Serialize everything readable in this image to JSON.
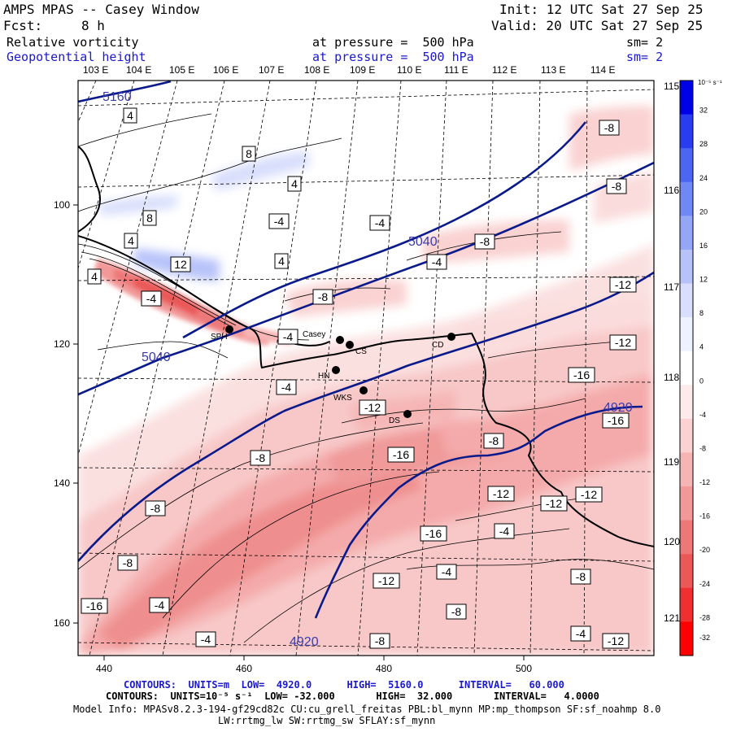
{
  "header": {
    "title": "AMPS MPAS -- Casey Window",
    "init": "Init: 12 UTC Sat 27 Sep 25",
    "fcst_label": "Fcst:",
    "fcst_value": "8 h",
    "valid": "Valid: 20 UTC Sat 27 Sep 25",
    "field1": "Relative vorticity",
    "field1_level": "at pressure =  500 hPa",
    "field1_sm": "sm= 2",
    "field2": "Geopotential height",
    "field2_level": "at pressure =  500 hPa",
    "field2_sm": "sm= 2"
  },
  "map": {
    "top_longitudes": [
      "103 E",
      "104 E",
      "105 E",
      "106 E",
      "107 E",
      "108 E",
      "109 E",
      "110 E",
      "111 E",
      "112 E",
      "113 E",
      "114 E"
    ],
    "right_longitudes": [
      "115 E",
      "116 E",
      "117 E",
      "118 E",
      "119 E",
      "120 E",
      "121 E"
    ],
    "x_ticks": [
      "440",
      "460",
      "480",
      "500"
    ],
    "y_ticks": [
      "100",
      "120",
      "140",
      "160"
    ],
    "stations": [
      "SPH",
      "Casey",
      "CS",
      "CD",
      "HN",
      "WKS",
      "DS"
    ],
    "height_labels": [
      "5160",
      "5040",
      "5040",
      "4920",
      "4920"
    ],
    "vorticity_labels": [
      "4",
      "4",
      "8",
      "4",
      "8",
      "4",
      "12",
      "4",
      "-4",
      "-4",
      "-4",
      "-4",
      "-8",
      "-8",
      "-8",
      "-8",
      "-4",
      "-4",
      "-12",
      "-12",
      "-12",
      "-16",
      "-16",
      "-16",
      "-8",
      "-8",
      "-8",
      "-12",
      "-12",
      "-12",
      "-16",
      "-4",
      "-8",
      "-16",
      "-12",
      "-4",
      "-8",
      "-4",
      "-8",
      "-4",
      "-8",
      "-4",
      "-12"
    ]
  },
  "colorbar": {
    "units": "10⁻⁵ s⁻¹",
    "levels": [
      "32",
      "28",
      "24",
      "20",
      "16",
      "12",
      "8",
      "4",
      "0",
      "-4",
      "-8",
      "-12",
      "-16",
      "-20",
      "-24",
      "-28",
      "-32"
    ],
    "colors": [
      "#0000e6",
      "#2a3cf0",
      "#4d66f2",
      "#7088f4",
      "#96a6f7",
      "#b7c2f9",
      "#d8defc",
      "#eef1fe",
      "#ffffff",
      "#fdeaea",
      "#fad2d2",
      "#f6b5b5",
      "#f29898",
      "#ee7878",
      "#ea5858",
      "#f03030",
      "#ff0000"
    ]
  },
  "footer": {
    "contours1": "CONTOURS:  UNITS=m  LOW=  4920.0      HIGH=  5160.0      INTERVAL=   60.000",
    "contours2": "CONTOURS:  UNITS=10⁻⁵ s⁻¹  LOW= -32.000       HIGH=  32.000       INTERVAL=   4.0000",
    "model_info": "Model Info: MPASv8.2.3-194-gf29cd82c CU:cu_grell_freitas PBL:bl_mynn MP:mp_thompson SF:sf_noahmp 8.0",
    "model_info2": "LW:rrtmg_lw SW:rrtmg_sw SFLAY:sf_mynn"
  }
}
